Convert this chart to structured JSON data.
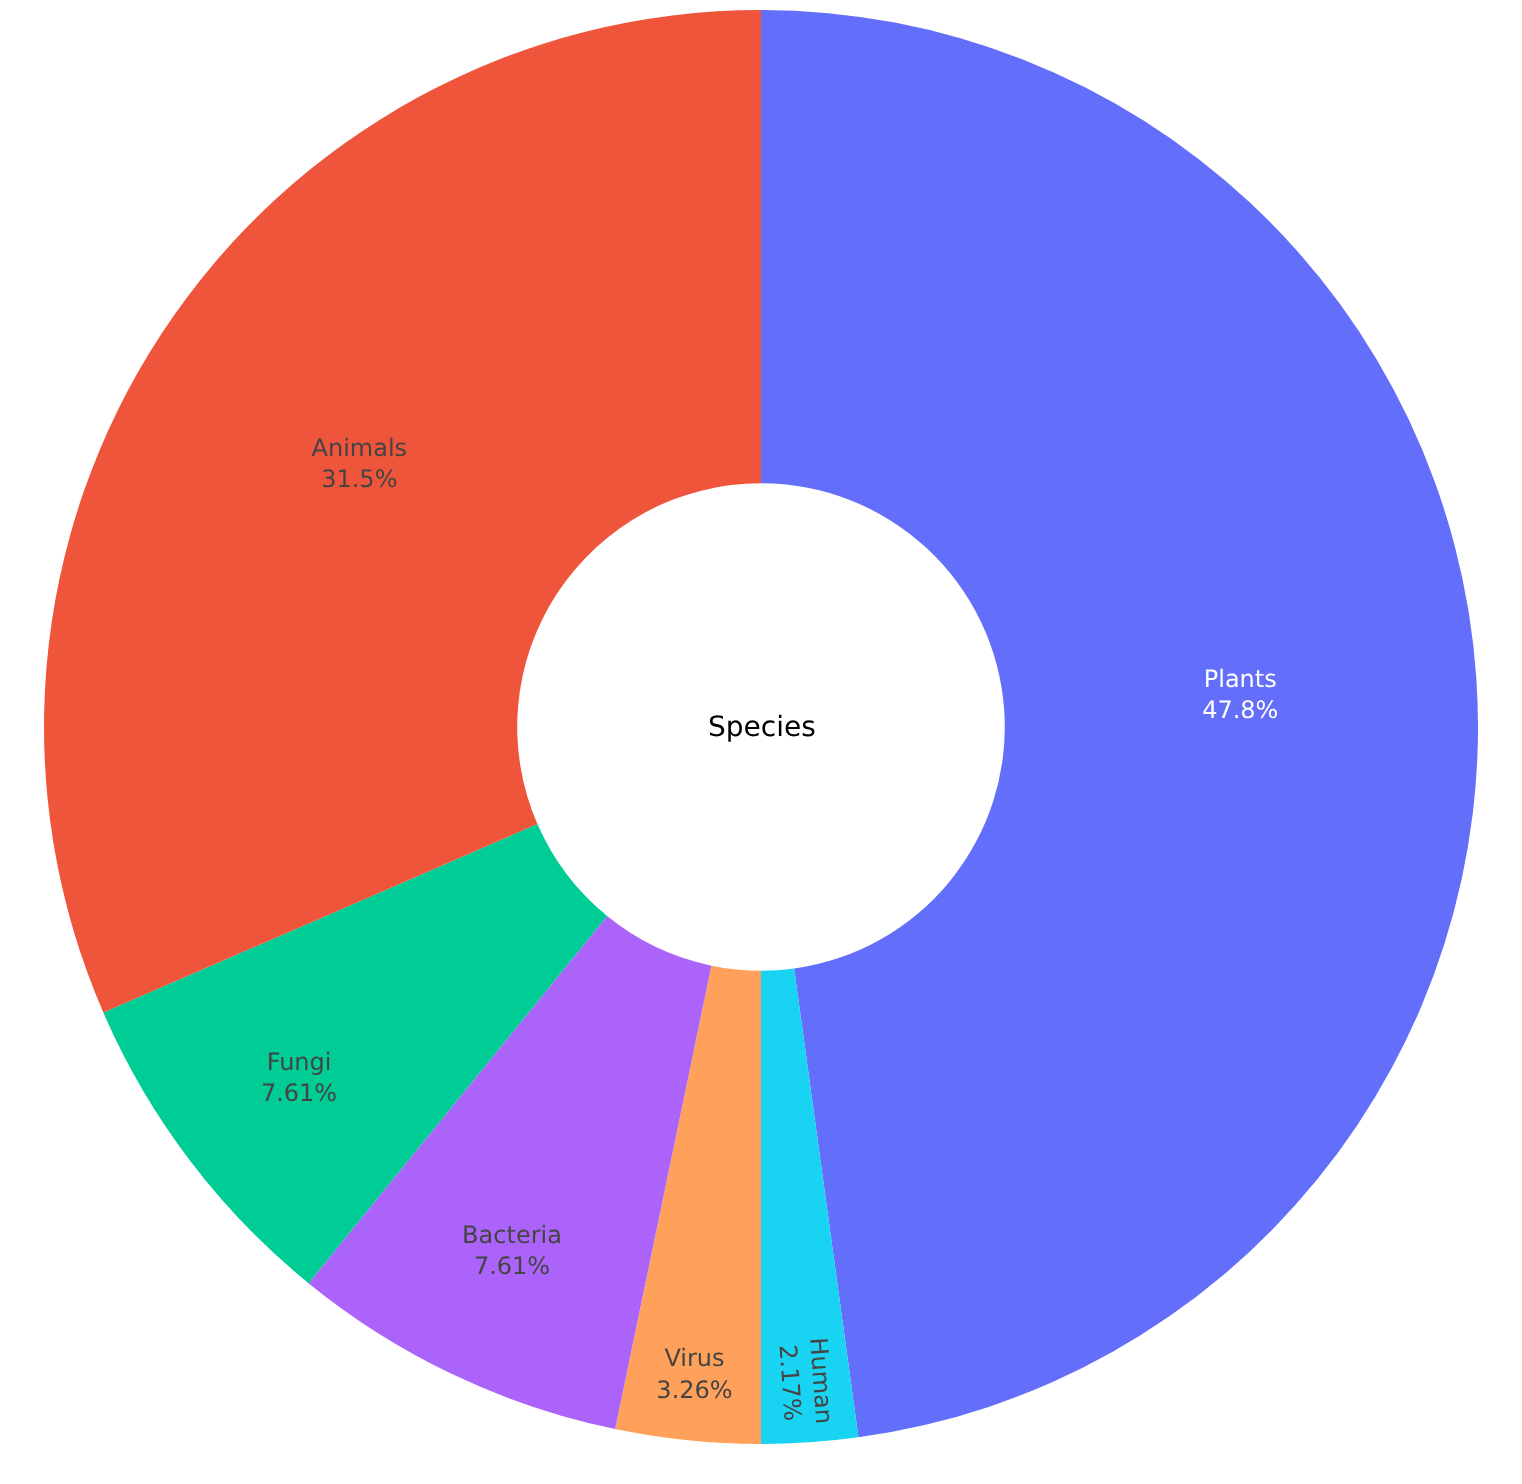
{
  "chart_data": {
    "type": "donut",
    "categories": [
      "Plants",
      "Human",
      "Virus",
      "Bacteria",
      "Fungi",
      "Animals"
    ],
    "values": [
      47.83,
      2.17,
      3.26,
      7.61,
      7.61,
      31.52
    ],
    "value_labels": [
      "47.8%",
      "2.17%",
      "3.26%",
      "7.61%",
      "7.61%",
      "31.5%"
    ],
    "colors": [
      "#636efa",
      "#19d3f3",
      "#ffa15a",
      "#ab63fa",
      "#00cc96",
      "#ef553b"
    ],
    "annotations": [
      "Species"
    ],
    "legend": false
  }
}
